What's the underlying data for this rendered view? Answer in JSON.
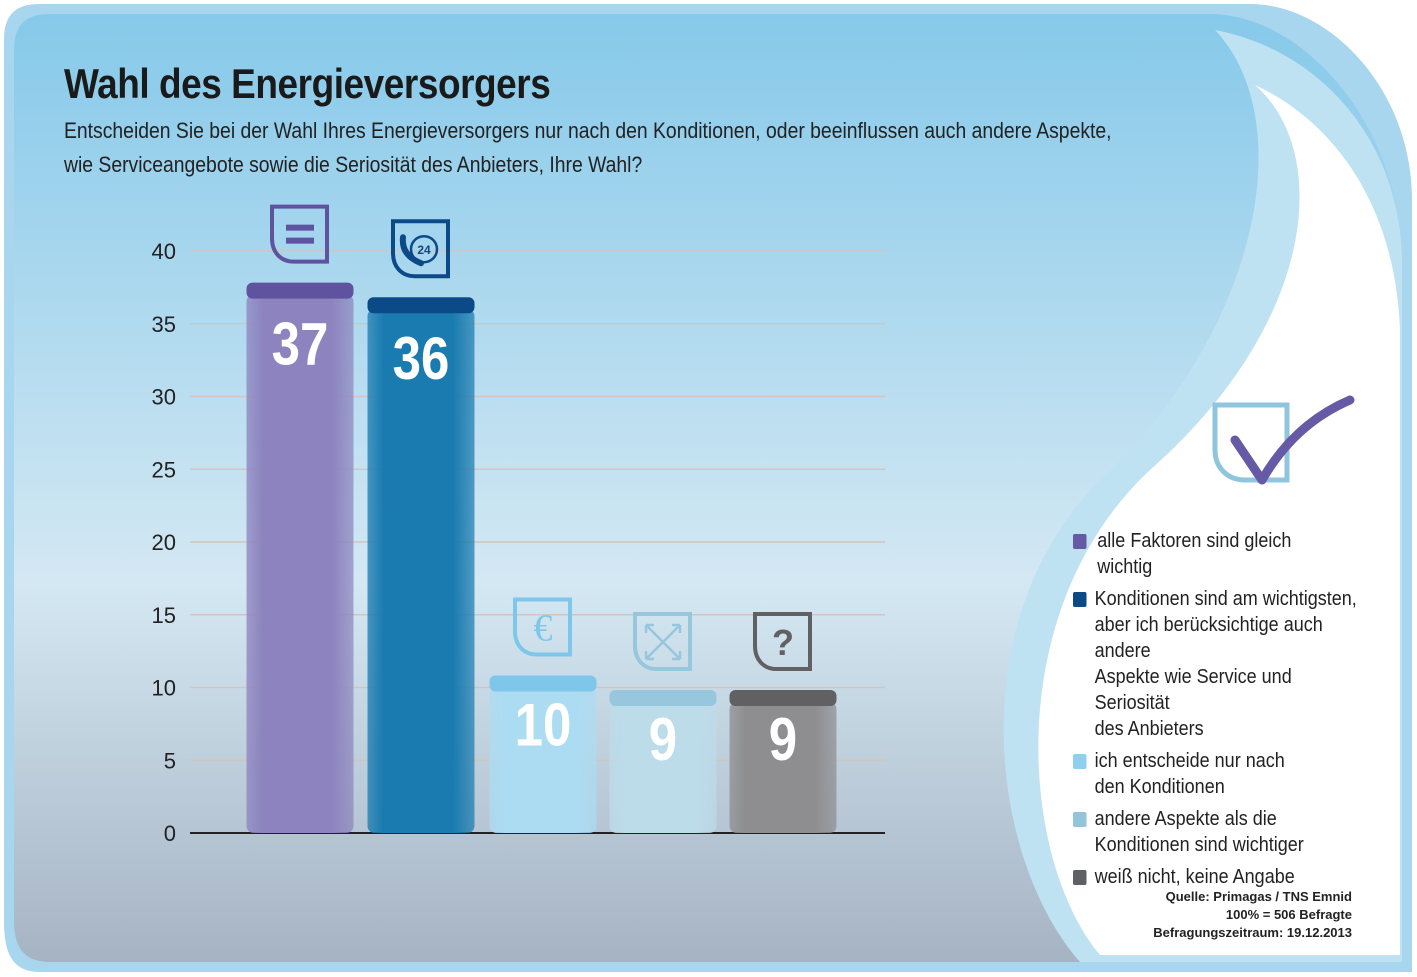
{
  "header": {
    "title": "Wahl des Energieversorgers",
    "subtitle_line1": "Entscheiden Sie bei der Wahl Ihres Energieversorgers nur nach den Konditionen, oder beeinflussen auch andere Aspekte,",
    "subtitle_line2": "wie Serviceangebote sowie die Seriosität des Anbieters, Ihre Wahl?"
  },
  "chart_data": {
    "type": "bar",
    "title": "Wahl des Energieversorgers",
    "xlabel": "",
    "ylabel": "",
    "ylim": [
      0,
      40
    ],
    "yticks": [
      "0",
      "5",
      "10",
      "15",
      "20",
      "25",
      "30",
      "35",
      "40"
    ],
    "grid": true,
    "legend_position": "right",
    "categories": [
      "alle Faktoren sind gleich wichtig",
      "Konditionen sind am wichtigsten, aber ich berücksichtige auch andere Aspekte wie Service und Seriosität des Anbieters",
      "ich entscheide nur nach den Konditionen",
      "andere Aspekte als die Konditionen sind wichtiger",
      "weiß nicht, keine Angabe"
    ],
    "values": [
      37,
      36,
      10,
      9,
      9
    ],
    "value_labels": [
      "37",
      "36",
      "10",
      "9",
      "9"
    ],
    "colors": [
      "#8d84bf",
      "#1a7bb0",
      "#acdcf2",
      "#bcdcea",
      "#8e8e90"
    ],
    "cap_colors": [
      "#5f53a0",
      "#0b4a86",
      "#7ec7ea",
      "#96c7dd",
      "#616163"
    ],
    "icons": [
      "equals-icon",
      "phone-24-icon",
      "euro-icon",
      "arrows-cross-icon",
      "question-icon"
    ]
  },
  "legend": [
    {
      "line1": "alle Faktoren sind gleich",
      "line2": "wichtig",
      "color": "#6659a6"
    },
    {
      "line1": "Konditionen sind am wichtigsten,",
      "line2": "aber ich berücksichtige auch andere",
      "line3": "Aspekte wie Service und Seriosität",
      "line4": "des  Anbieters",
      "color": "#0d4a85"
    },
    {
      "line1": "ich entscheide nur nach",
      "line2": "den Konditionen",
      "color": "#8fd0ef"
    },
    {
      "line1": "andere Aspekte als die",
      "line2": "Konditionen sind wichtiger",
      "color": "#92c4da"
    },
    {
      "line1": "weiß nicht, keine Angabe",
      "color": "#5f6063"
    }
  ],
  "source": {
    "line1": "Quelle: Primagas / TNS Emnid",
    "line2": "100% = 506 Befragte",
    "line3": "Befragungszeitraum: 19.12.2013"
  }
}
